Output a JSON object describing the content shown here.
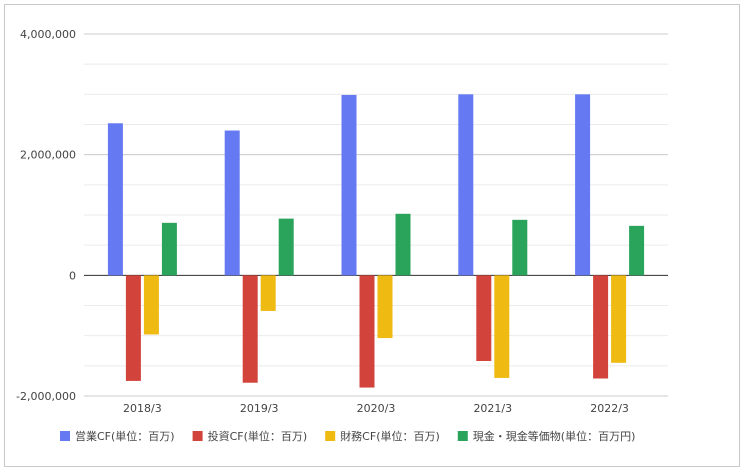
{
  "chart_data": {
    "type": "bar",
    "title": "",
    "xlabel": "",
    "ylabel": "",
    "categories": [
      "2018/3",
      "2019/3",
      "2020/3",
      "2021/3",
      "2022/3"
    ],
    "ylim": [
      -2000000,
      4000000
    ],
    "yticks": [
      {
        "value": 4000000,
        "label": "4,000,000"
      },
      {
        "value": 2000000,
        "label": "2,000,000"
      },
      {
        "value": 0,
        "label": "0"
      },
      {
        "value": -2000000,
        "label": "-2,000,000"
      }
    ],
    "grid": true,
    "legend_position": "bottom",
    "series": [
      {
        "name": "営業CF(単位：百万)",
        "color": "#6479f2",
        "values": [
          2520000,
          2400000,
          2990000,
          3000000,
          3000000
        ]
      },
      {
        "name": "投資CF(単位：百万)",
        "color": "#d2443b",
        "values": [
          -1750000,
          -1780000,
          -1860000,
          -1420000,
          -1710000
        ]
      },
      {
        "name": "財務CF(単位：百万)",
        "color": "#efba12",
        "values": [
          -980000,
          -590000,
          -1040000,
          -1700000,
          -1450000
        ]
      },
      {
        "name": "現金・現金等価物(単位：百万円)",
        "color": "#2aa35b",
        "values": [
          870000,
          940000,
          1020000,
          920000,
          820000
        ]
      }
    ]
  }
}
